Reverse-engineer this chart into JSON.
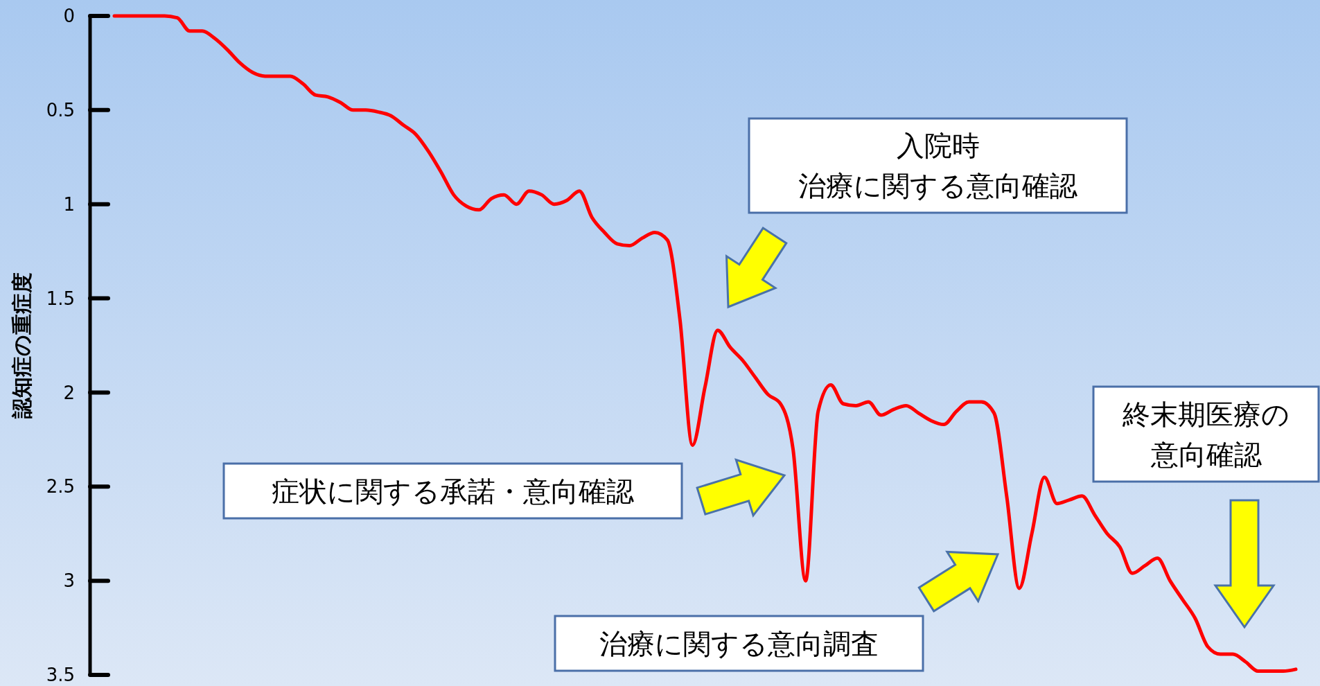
{
  "chart_data": {
    "type": "line",
    "ylabel": "認知症の重症度",
    "ylim": [
      3.5,
      0
    ],
    "yticks": [
      0,
      0.5,
      1,
      1.5,
      2,
      2.5,
      3,
      3.5
    ],
    "tick_labels": "y",
    "grid": false,
    "marker": "none",
    "line_style": "solid",
    "categories": [
      null,
      null,
      null,
      null,
      null,
      null,
      null,
      null,
      null,
      null,
      null,
      null,
      null,
      null,
      null,
      null,
      null,
      null,
      null,
      null,
      null,
      null,
      null,
      null,
      null,
      null,
      null,
      null,
      null,
      null,
      null,
      null,
      null,
      null,
      null,
      null,
      null,
      null,
      null,
      null,
      null,
      null,
      null,
      null,
      null,
      null,
      null,
      null,
      null,
      null,
      null,
      null,
      null,
      null,
      null,
      null,
      null,
      null,
      null,
      null,
      null,
      null,
      null,
      null,
      null,
      null,
      null,
      null,
      null,
      null,
      null,
      null,
      null,
      null,
      null,
      null,
      null,
      null,
      null,
      null,
      null,
      null,
      null,
      null,
      null,
      null,
      null,
      null,
      null,
      null,
      null,
      null,
      null,
      null,
      null
    ],
    "series": [
      {
        "color": "#ff0000",
        "values": [
          0,
          0,
          0,
          0,
          0,
          0.01,
          0.08,
          0.08,
          0.12,
          0.18,
          0.25,
          0.3,
          0.32,
          0.32,
          0.32,
          0.36,
          0.42,
          0.43,
          0.46,
          0.5,
          0.5,
          0.51,
          0.53,
          0.58,
          0.63,
          0.72,
          0.83,
          0.95,
          1.01,
          1.03,
          0.97,
          0.95,
          1,
          0.93,
          0.95,
          1,
          0.98,
          0.93,
          1.07,
          1.15,
          1.21,
          1.22,
          1.18,
          1.15,
          1.19,
          1.61,
          2.28,
          1.97,
          1.67,
          1.76,
          1.83,
          1.92,
          2.01,
          2.06,
          2.3,
          3,
          2.1,
          1.96,
          2.06,
          2.07,
          2.05,
          2.12,
          2.09,
          2.07,
          2.11,
          2.15,
          2.17,
          2.1,
          2.05,
          2.05,
          2.11,
          2.55,
          3.04,
          2.75,
          2.45,
          2.59,
          2.57,
          2.55,
          2.65,
          2.75,
          2.82,
          2.96,
          2.92,
          2.88,
          3,
          3.1,
          3.2,
          3.35,
          3.39,
          3.39,
          3.43,
          3.48,
          3.48,
          3.48,
          3.47
        ]
      }
    ],
    "annotations": [
      "入院時治療に関する意向確認",
      "症状に関する承諾・意向確認",
      "治療に関する意向調査",
      "終末期医療の意向確認"
    ]
  }
}
